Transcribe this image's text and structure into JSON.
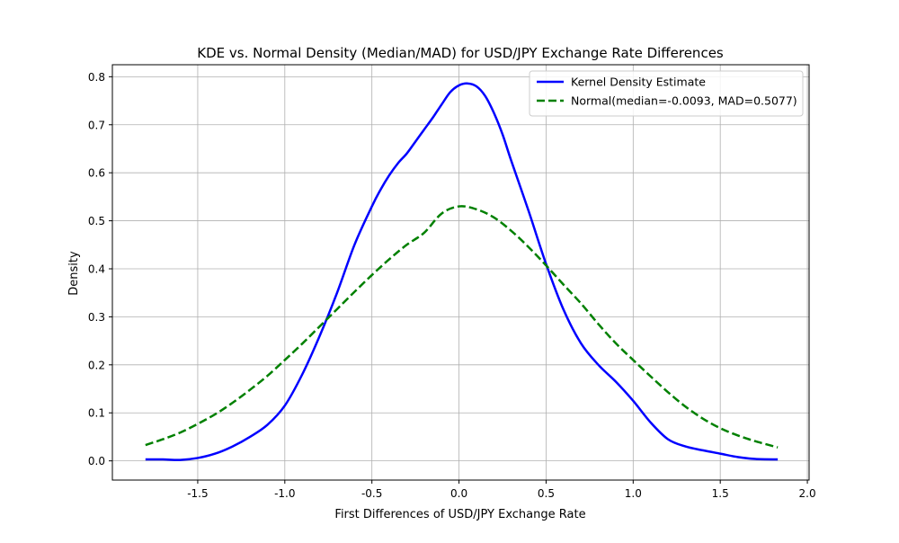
{
  "chart_data": {
    "type": "line",
    "title": "KDE vs. Normal Density (Median/MAD) for USD/JPY Exchange Rate Differences",
    "xlabel": "First Differences of USD/JPY Exchange Rate",
    "ylabel": "Density",
    "xlim": [
      -1.99,
      2.01
    ],
    "ylim": [
      -0.04,
      0.825
    ],
    "xticks": [
      -1.5,
      -1.0,
      -0.5,
      0.0,
      0.5,
      1.0,
      1.5,
      2.0
    ],
    "xtick_labels": [
      "-1.5",
      "-1.0",
      "-0.5",
      "0.0",
      "0.5",
      "1.0",
      "1.5",
      "2.0"
    ],
    "yticks": [
      0.0,
      0.1,
      0.2,
      0.3,
      0.4,
      0.5,
      0.6,
      0.7,
      0.8
    ],
    "ytick_labels": [
      "0.0",
      "0.1",
      "0.2",
      "0.3",
      "0.4",
      "0.5",
      "0.6",
      "0.7",
      "0.8"
    ],
    "grid": true,
    "legend_position": "top-right",
    "series": [
      {
        "name": "Kernel Density Estimate",
        "color": "#0000ff",
        "style": "solid",
        "x": [
          -1.8,
          -1.7,
          -1.6,
          -1.5,
          -1.4,
          -1.3,
          -1.2,
          -1.1,
          -1.0,
          -0.9,
          -0.8,
          -0.7,
          -0.6,
          -0.5,
          -0.45,
          -0.4,
          -0.35,
          -0.3,
          -0.25,
          -0.2,
          -0.15,
          -0.1,
          -0.05,
          0.0,
          0.05,
          0.1,
          0.15,
          0.2,
          0.25,
          0.3,
          0.4,
          0.5,
          0.6,
          0.7,
          0.8,
          0.9,
          1.0,
          1.1,
          1.2,
          1.3,
          1.4,
          1.5,
          1.6,
          1.7,
          1.83
        ],
        "y": [
          0.003,
          0.003,
          0.002,
          0.006,
          0.015,
          0.03,
          0.05,
          0.075,
          0.115,
          0.18,
          0.26,
          0.35,
          0.45,
          0.53,
          0.565,
          0.595,
          0.62,
          0.64,
          0.665,
          0.69,
          0.715,
          0.742,
          0.768,
          0.782,
          0.786,
          0.78,
          0.76,
          0.725,
          0.68,
          0.625,
          0.52,
          0.41,
          0.315,
          0.245,
          0.2,
          0.165,
          0.125,
          0.08,
          0.045,
          0.03,
          0.022,
          0.015,
          0.008,
          0.004,
          0.003
        ]
      },
      {
        "name": "Normal(median=-0.0093, MAD=0.5077)",
        "color": "#008000",
        "style": "dashed",
        "x": [
          -1.8,
          -1.7,
          -1.6,
          -1.5,
          -1.4,
          -1.3,
          -1.2,
          -1.1,
          -1.0,
          -0.9,
          -0.8,
          -0.7,
          -0.6,
          -0.5,
          -0.4,
          -0.3,
          -0.2,
          -0.1,
          0.0,
          0.1,
          0.2,
          0.3,
          0.4,
          0.5,
          0.6,
          0.7,
          0.8,
          0.9,
          1.0,
          1.1,
          1.2,
          1.3,
          1.4,
          1.5,
          1.6,
          1.7,
          1.83
        ],
        "y": [
          0.033,
          0.045,
          0.059,
          0.077,
          0.097,
          0.121,
          0.148,
          0.177,
          0.21,
          0.244,
          0.28,
          0.316,
          0.352,
          0.387,
          0.42,
          0.45,
          0.475,
          0.515,
          0.53,
          0.524,
          0.507,
          0.479,
          0.445,
          0.407,
          0.367,
          0.328,
          0.285,
          0.245,
          0.21,
          0.176,
          0.143,
          0.113,
          0.088,
          0.068,
          0.053,
          0.041,
          0.028
        ]
      }
    ]
  }
}
